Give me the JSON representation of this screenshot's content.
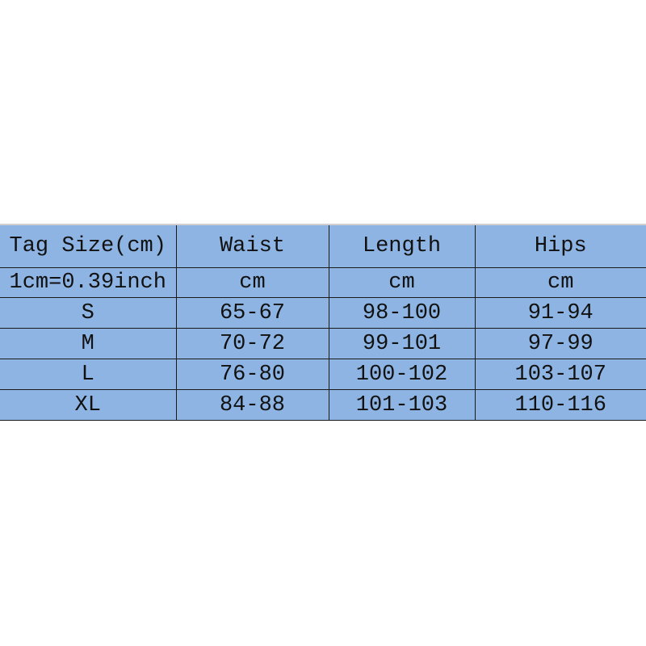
{
  "table": {
    "headers": [
      "Tag Size(cm)",
      "Waist",
      "Length",
      "Hips"
    ],
    "units": [
      "1cm=0.39inch",
      "cm",
      "cm",
      "cm"
    ],
    "rows": [
      [
        "S",
        "65-67",
        "98-100",
        "91-94"
      ],
      [
        "M",
        "70-72",
        "99-101",
        "97-99"
      ],
      [
        "L",
        "76-80",
        "100-102",
        "103-107"
      ],
      [
        "XL",
        "84-88",
        "101-103",
        "110-116"
      ]
    ]
  },
  "colors": {
    "cell_fill": "#8db4e2",
    "border": "#1a1a1a"
  }
}
